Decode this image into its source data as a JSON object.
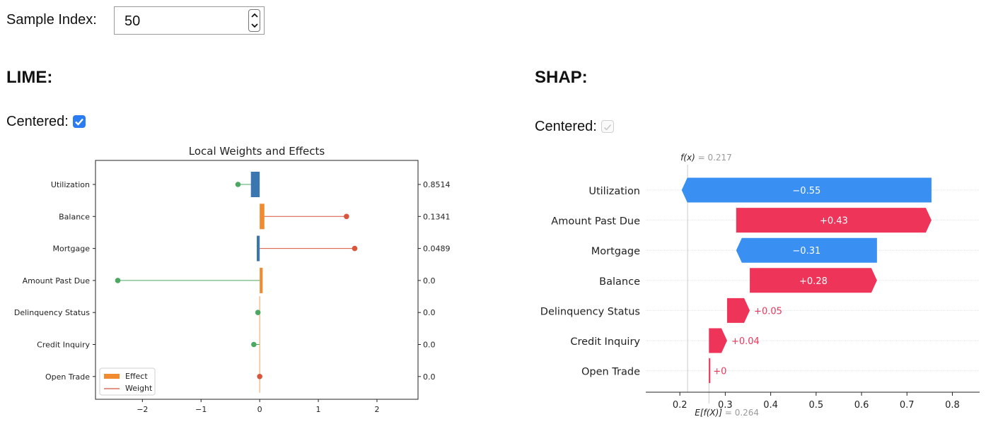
{
  "sample_index": {
    "label": "Sample Index:",
    "value": "50"
  },
  "lime": {
    "heading": "LIME:",
    "centered_label": "Centered:",
    "centered_checked": true
  },
  "shap": {
    "heading": "SHAP:",
    "centered_label": "Centered:",
    "centered_checked": true
  },
  "colors": {
    "effect": "#f28a30",
    "effect_neg": "#3a76b0",
    "weight_pos": "#d9553b",
    "weight_neg": "#4aa860",
    "shap_pos": "#ee3559",
    "shap_neg": "#3a8ff2"
  },
  "icons": {
    "spinner_up": "chevron-up-icon",
    "spinner_down": "chevron-down-icon",
    "check": "check-icon"
  },
  "chart_data": [
    {
      "type": "bar",
      "title": "Local Weights and Effects",
      "categories": [
        "Utilization",
        "Balance",
        "Mortgage",
        "Amount Past Due",
        "Delinquency Status",
        "Credit Inquiry",
        "Open Trade"
      ],
      "right_labels": [
        "0.8514",
        "0.1341",
        "0.0489",
        "0.0",
        "0.0",
        "0.0",
        "0.0"
      ],
      "series": [
        {
          "name": "Effect",
          "values": [
            -0.15,
            0.08,
            -0.05,
            0.05,
            0.0,
            0.0,
            0.0
          ]
        },
        {
          "name": "Weight",
          "values": [
            -0.37,
            1.48,
            1.62,
            -2.42,
            -0.03,
            -0.1,
            0.0
          ]
        }
      ],
      "xlim": [
        -2.8,
        2.7
      ],
      "xticks": [
        -2,
        -1,
        0,
        1,
        2
      ],
      "xtick_labels": [
        "−2",
        "−1",
        "0",
        "1",
        "2"
      ],
      "legend": "bottom-left"
    },
    {
      "type": "bar",
      "subtype": "waterfall",
      "fx_label": "f(x)",
      "fx_value": "= 0.217",
      "efx_label": "E[f(X)]",
      "efx_value": "= 0.264",
      "fx": 0.217,
      "base": 0.264,
      "categories": [
        "Utilization",
        "Amount Past Due",
        "Mortgage",
        "Balance",
        "Delinquency Status",
        "Credit Inquiry",
        "Open Trade"
      ],
      "values": [
        -0.55,
        0.43,
        -0.31,
        0.28,
        0.05,
        0.04,
        0.0
      ],
      "value_labels": [
        "−0.55",
        "+0.43",
        "−0.31",
        "+0.28",
        "+0.05",
        "+0.04",
        "+0"
      ],
      "xlim": [
        0.125,
        0.86
      ],
      "xticks": [
        0.2,
        0.3,
        0.4,
        0.5,
        0.6,
        0.7,
        0.8
      ],
      "xtick_labels": [
        "0.2",
        "0.3",
        "0.4",
        "0.5",
        "0.6",
        "0.7",
        "0.8"
      ]
    }
  ]
}
